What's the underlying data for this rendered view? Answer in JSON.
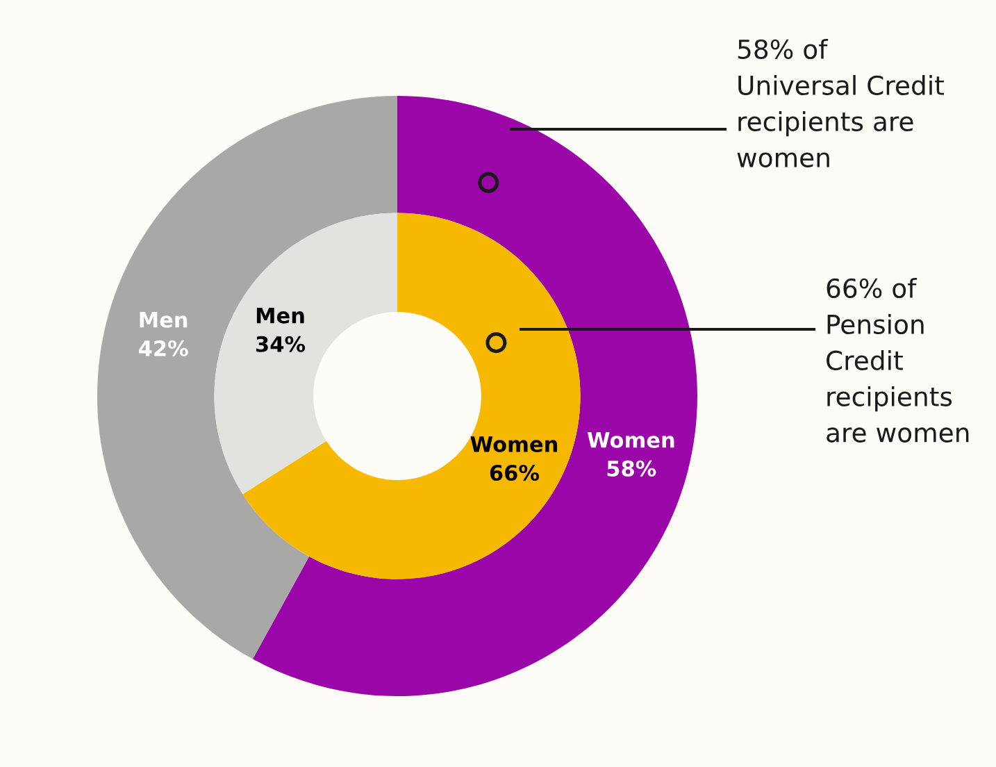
{
  "chart_data": {
    "type": "donut",
    "categories": [
      "Women",
      "Men"
    ],
    "series": [
      {
        "values": [
          58,
          42
        ],
        "colors": [
          "#9b06a8",
          "#a8a8a6"
        ],
        "value_labels": [
          "58%",
          "42%"
        ]
      },
      {
        "values": [
          66,
          34
        ],
        "colors": [
          "#f7b900",
          "#e2e2de"
        ],
        "value_labels": [
          "66%",
          "34%"
        ]
      }
    ],
    "annotations": [
      "58% of\nUniversal Credit\nrecipients are\nwomen",
      "66% of\nPension\nCredit\nrecipients\nare women"
    ]
  }
}
